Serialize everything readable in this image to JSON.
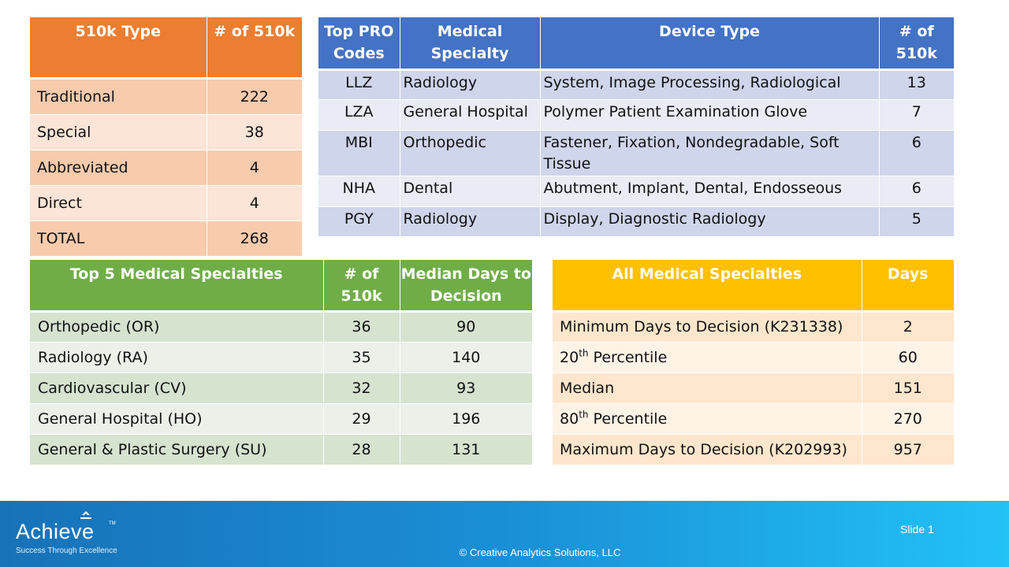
{
  "type_table": {
    "headers": [
      "510k Type",
      "# of 510k"
    ],
    "rows": [
      [
        "Traditional",
        "222"
      ],
      [
        "Special",
        "38"
      ],
      [
        "Abbreviated",
        "4"
      ],
      [
        "Direct",
        "4"
      ],
      [
        "TOTAL",
        "268"
      ]
    ]
  },
  "pro_codes_table": {
    "headers": [
      "Top PRO Codes",
      "Medical Specialty",
      "Device Type",
      "# of 510k"
    ],
    "rows": [
      [
        "LLZ",
        "Radiology",
        "System, Image Processing, Radiological",
        "13"
      ],
      [
        "LZA",
        "General Hospital",
        "Polymer Patient Examination Glove",
        "7"
      ],
      [
        "MBI",
        "Orthopedic",
        "Fastener, Fixation, Nondegradable, Soft Tissue",
        "6"
      ],
      [
        "NHA",
        "Dental",
        "Abutment, Implant, Dental, Endosseous",
        "6"
      ],
      [
        "PGY",
        "Radiology",
        "Display, Diagnostic Radiology",
        "5"
      ]
    ]
  },
  "specialties_table": {
    "headers": [
      "Top 5 Medical Specialties",
      "# of 510k",
      "Median Days to Decision"
    ],
    "rows": [
      [
        "Orthopedic (OR)",
        "36",
        "90"
      ],
      [
        "Radiology (RA)",
        "35",
        "140"
      ],
      [
        "Cardiovascular (CV)",
        "32",
        "93"
      ],
      [
        "General Hospital (HO)",
        "29",
        "196"
      ],
      [
        "General & Plastic Surgery (SU)",
        "28",
        "131"
      ]
    ]
  },
  "days_table": {
    "headers": [
      "All Medical Specialties",
      "Days"
    ],
    "rows": [
      {
        "label": "Minimum Days to Decision (K231338)",
        "value": "2"
      },
      {
        "label_num": "20",
        "label_sup": "th",
        "label_rest": " Percentile",
        "value": "60"
      },
      {
        "label": "Median",
        "value": "151"
      },
      {
        "label_num": "80",
        "label_sup": "th",
        "label_rest": " Percentile",
        "value": "270"
      },
      {
        "label": "Maximum Days to Decision (K202993)",
        "value": "957"
      }
    ]
  },
  "footer": {
    "logo_word": "Achieve",
    "logo_tm": "TM",
    "logo_tagline": "Success Through Excellence",
    "copyright": "© Creative Analytics Solutions, LLC",
    "slide_label": "Slide 1"
  },
  "colors": {
    "orange_header": "#ED7D31",
    "blue_header": "#4472C4",
    "green_header": "#70AD47",
    "gold_header": "#FFC000"
  }
}
